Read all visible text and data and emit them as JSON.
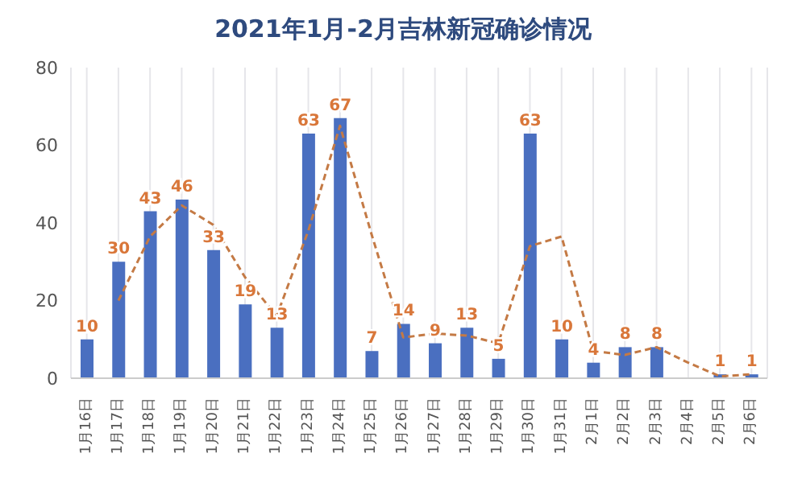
{
  "chart_data": {
    "type": "bar",
    "title": "2021年1月-2月吉林新冠确诊情况",
    "categories": [
      "1月16日",
      "1月17日",
      "1月18日",
      "1月19日",
      "1月20日",
      "1月21日",
      "1月22日",
      "1月23日",
      "1月24日",
      "1月25日",
      "1月26日",
      "1月27日",
      "1月28日",
      "1月29日",
      "1月30日",
      "1月31日",
      "2月1日",
      "2月2日",
      "2月3日",
      "2月4日",
      "2月5日",
      "2月6日"
    ],
    "series": [
      {
        "color": "#4a6fc0",
        "values": [
          10,
          30,
          43,
          46,
          33,
          19,
          13,
          63,
          67,
          7,
          14,
          9,
          13,
          5,
          63,
          10,
          4,
          8,
          8,
          null,
          1,
          1
        ],
        "value_labels": [
          "10",
          "30",
          "43",
          "46",
          "33",
          "19",
          "13",
          "63",
          "67",
          "7",
          "14",
          "9",
          "13",
          "5",
          "63",
          "10",
          "4",
          "8",
          "8",
          null,
          "1",
          "1"
        ]
      },
      {
        "type": "line",
        "color": "#c47a45",
        "line_style": "dashed",
        "marker": "none",
        "values": [
          null,
          20,
          36.5,
          44.5,
          39.5,
          26,
          16,
          38,
          65,
          37,
          10.5,
          11.5,
          11,
          9,
          34,
          36.5,
          7,
          6,
          8,
          4,
          0.5,
          1
        ]
      }
    ],
    "ylim": [
      0,
      80
    ],
    "yticks": [
      0,
      20,
      40,
      60,
      80
    ],
    "grid": "x",
    "legend": false
  }
}
